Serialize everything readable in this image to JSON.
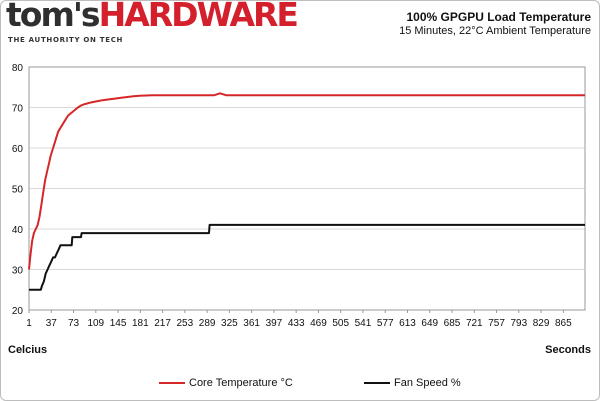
{
  "branding": {
    "logo_part1": "tom's",
    "logo_part2": "HARDWARE",
    "tagline": "THE AUTHORITY ON TECH"
  },
  "colors": {
    "brand_red": "#d4202c",
    "series_core": "#d62728",
    "series_fan": "#111111",
    "grid": "#d9d9d9"
  },
  "chart_data": {
    "type": "line",
    "title": "100% GPGPU Load Temperature",
    "subtitle": "15 Minutes, 22°C Ambient Temperature",
    "ylabel": "Celcius",
    "xlabel": "Seconds",
    "ylim": [
      20,
      80
    ],
    "yticks": [
      20,
      30,
      40,
      50,
      60,
      70,
      80
    ],
    "xlim": [
      1,
      900
    ],
    "xticks": [
      1,
      37,
      73,
      109,
      145,
      181,
      217,
      253,
      289,
      325,
      361,
      397,
      433,
      469,
      505,
      541,
      577,
      613,
      649,
      685,
      721,
      757,
      793,
      829,
      865
    ],
    "grid": "horizontal",
    "legend_position": "bottom",
    "series": [
      {
        "name": "Core Temperature °C",
        "points": [
          [
            1,
            30
          ],
          [
            3,
            33
          ],
          [
            6,
            37
          ],
          [
            9,
            39
          ],
          [
            12,
            40
          ],
          [
            15,
            41
          ],
          [
            18,
            43
          ],
          [
            21,
            46
          ],
          [
            24,
            49
          ],
          [
            27,
            52
          ],
          [
            30,
            54
          ],
          [
            33,
            56
          ],
          [
            36,
            58
          ],
          [
            40,
            60
          ],
          [
            44,
            62
          ],
          [
            48,
            64
          ],
          [
            52,
            65
          ],
          [
            56,
            66
          ],
          [
            60,
            67
          ],
          [
            64,
            68
          ],
          [
            68,
            68.5
          ],
          [
            72,
            69
          ],
          [
            76,
            69.5
          ],
          [
            80,
            70
          ],
          [
            85,
            70.5
          ],
          [
            90,
            70.8
          ],
          [
            95,
            71
          ],
          [
            100,
            71.2
          ],
          [
            110,
            71.5
          ],
          [
            120,
            71.8
          ],
          [
            130,
            72
          ],
          [
            140,
            72.2
          ],
          [
            150,
            72.4
          ],
          [
            160,
            72.6
          ],
          [
            170,
            72.8
          ],
          [
            180,
            72.9
          ],
          [
            200,
            73
          ],
          [
            300,
            73
          ],
          [
            310,
            73.5
          ],
          [
            320,
            73
          ],
          [
            900,
            73
          ]
        ]
      },
      {
        "name": "Fan Speed %",
        "points": [
          [
            1,
            25
          ],
          [
            20,
            25
          ],
          [
            22,
            26
          ],
          [
            25,
            27
          ],
          [
            28,
            29
          ],
          [
            31,
            30
          ],
          [
            34,
            31
          ],
          [
            37,
            32
          ],
          [
            40,
            33
          ],
          [
            43,
            33
          ],
          [
            46,
            34
          ],
          [
            49,
            35
          ],
          [
            52,
            36
          ],
          [
            55,
            36
          ],
          [
            70,
            36
          ],
          [
            71,
            38
          ],
          [
            85,
            38
          ],
          [
            86,
            39
          ],
          [
            292,
            39
          ],
          [
            293,
            41
          ],
          [
            900,
            41
          ]
        ]
      }
    ]
  }
}
